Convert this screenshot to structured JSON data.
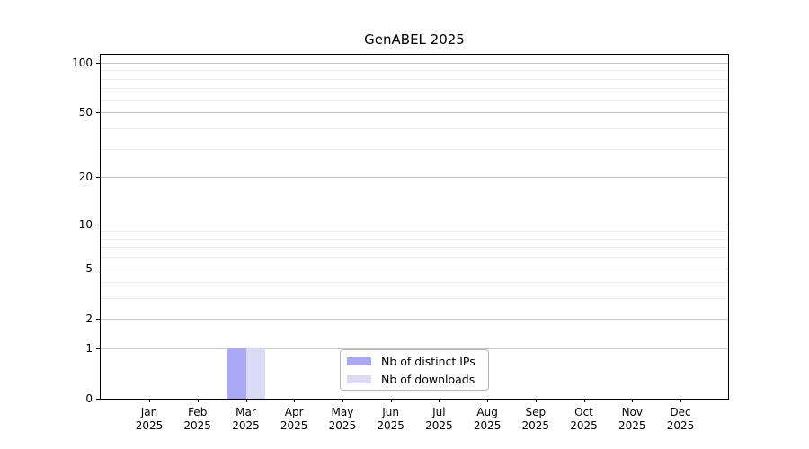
{
  "chart_data": {
    "type": "bar",
    "title": "GenABEL 2025",
    "categories": [
      "Jan",
      "Feb",
      "Mar",
      "Apr",
      "May",
      "Jun",
      "Jul",
      "Aug",
      "Sep",
      "Oct",
      "Nov",
      "Dec"
    ],
    "x_tick_year": "2025",
    "series": [
      {
        "name": "Nb of distinct IPs",
        "color": "#a9a9f5",
        "values": [
          0,
          0,
          1,
          0,
          0,
          0,
          0,
          0,
          0,
          0,
          0,
          0
        ]
      },
      {
        "name": "Nb of downloads",
        "color": "#dbdbf8",
        "values": [
          0,
          0,
          1,
          0,
          0,
          0,
          0,
          0,
          0,
          0,
          0,
          0
        ]
      }
    ],
    "y_scale": "log1p",
    "y_major_ticks": [
      0,
      1,
      2,
      5,
      10,
      20,
      50,
      100
    ],
    "y_minor_gridlines": [
      3,
      4,
      6,
      7,
      8,
      9,
      30,
      40,
      60,
      70,
      80,
      90
    ],
    "ylim": [
      0,
      111.5
    ],
    "xlabel": "",
    "ylabel": "",
    "grid": "horizontal",
    "legend_position": "bottom-center",
    "colors": {
      "major_grid": "#c8c8c8",
      "minor_grid": "#ececec",
      "axis": "#000000",
      "background": "#ffffff"
    }
  }
}
